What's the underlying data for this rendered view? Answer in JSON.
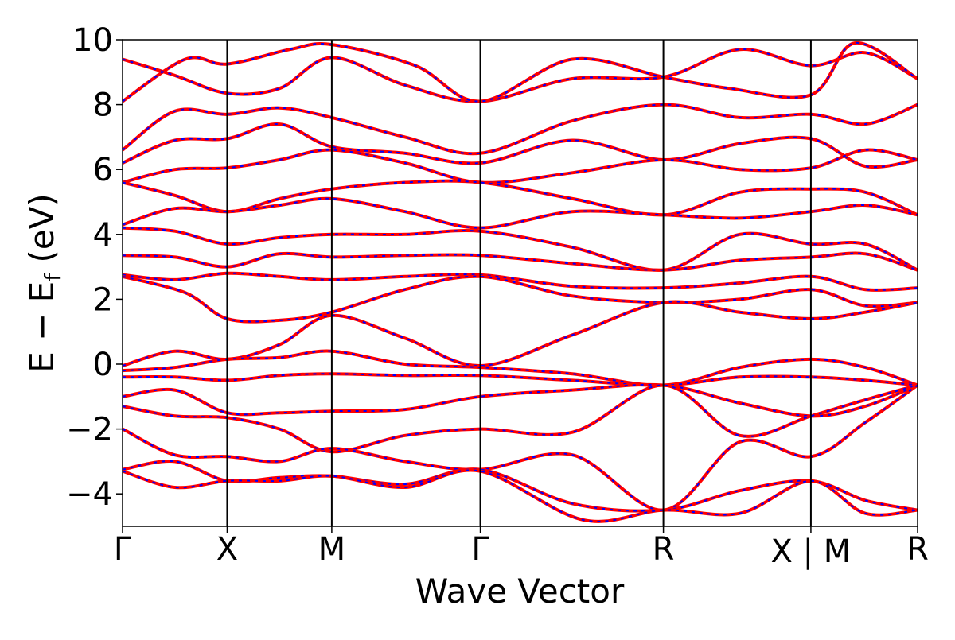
{
  "chart_data": {
    "type": "line",
    "title": "",
    "xlabel": "Wave Vector",
    "ylabel": "E − E",
    "ylabel_sub": "f",
    "ylabel_unit": " (eV)",
    "ylim": [
      -5,
      10
    ],
    "xlim": [
      0,
      7.6
    ],
    "y_ticks": [
      {
        "v": -4,
        "label": "−4"
      },
      {
        "v": -2,
        "label": "−2"
      },
      {
        "v": 0,
        "label": "0"
      },
      {
        "v": 2,
        "label": "2"
      },
      {
        "v": 4,
        "label": "4"
      },
      {
        "v": 6,
        "label": "6"
      },
      {
        "v": 8,
        "label": "8"
      },
      {
        "v": 10,
        "label": "10"
      }
    ],
    "kpoints": [
      {
        "x": 0.0,
        "label": "Γ"
      },
      {
        "x": 1.0,
        "label": "X"
      },
      {
        "x": 2.0,
        "label": "M"
      },
      {
        "x": 3.42,
        "label": "Γ"
      },
      {
        "x": 5.17,
        "label": "R"
      },
      {
        "x": 6.58,
        "label": "X | M"
      },
      {
        "x": 7.6,
        "label": "R"
      }
    ],
    "grid": false,
    "legend": "none",
    "colors": {
      "series_a": "#ff0000",
      "series_b": "#0000ff",
      "axes": "#000000"
    },
    "series": [
      {
        "style": "red-solid",
        "values": [
          {
            "x": 0.0,
            "y": 9.4
          },
          {
            "x": 0.5,
            "y": 8.9
          },
          {
            "x": 1.0,
            "y": 8.35
          },
          {
            "x": 1.5,
            "y": 8.5
          },
          {
            "x": 2.0,
            "y": 9.45
          },
          {
            "x": 2.7,
            "y": 8.6
          },
          {
            "x": 3.42,
            "y": 8.1
          },
          {
            "x": 4.3,
            "y": 8.8
          },
          {
            "x": 5.17,
            "y": 8.85
          },
          {
            "x": 5.9,
            "y": 9.7
          },
          {
            "x": 6.58,
            "y": 9.2
          },
          {
            "x": 7.1,
            "y": 9.6
          },
          {
            "x": 7.6,
            "y": 8.8
          }
        ]
      },
      {
        "style": "red-solid",
        "values": [
          {
            "x": 0.0,
            "y": 8.1
          },
          {
            "x": 0.6,
            "y": 9.4
          },
          {
            "x": 1.0,
            "y": 9.25
          },
          {
            "x": 1.6,
            "y": 9.7
          },
          {
            "x": 2.0,
            "y": 9.85
          },
          {
            "x": 2.8,
            "y": 9.2
          },
          {
            "x": 3.42,
            "y": 8.1
          },
          {
            "x": 4.3,
            "y": 9.4
          },
          {
            "x": 5.17,
            "y": 8.85
          },
          {
            "x": 5.8,
            "y": 8.5
          },
          {
            "x": 6.58,
            "y": 8.3
          },
          {
            "x": 7.0,
            "y": 9.9
          },
          {
            "x": 7.6,
            "y": 8.8
          }
        ]
      },
      {
        "style": "red-solid",
        "values": [
          {
            "x": 0.0,
            "y": 6.6
          },
          {
            "x": 0.5,
            "y": 7.8
          },
          {
            "x": 1.0,
            "y": 7.7
          },
          {
            "x": 1.5,
            "y": 7.9
          },
          {
            "x": 2.0,
            "y": 7.6
          },
          {
            "x": 2.7,
            "y": 7.0
          },
          {
            "x": 3.42,
            "y": 6.5
          },
          {
            "x": 4.3,
            "y": 7.5
          },
          {
            "x": 5.17,
            "y": 8.0
          },
          {
            "x": 5.9,
            "y": 7.6
          },
          {
            "x": 6.58,
            "y": 7.7
          },
          {
            "x": 7.1,
            "y": 7.4
          },
          {
            "x": 7.6,
            "y": 8.0
          }
        ]
      },
      {
        "style": "red-solid",
        "values": [
          {
            "x": 0.0,
            "y": 6.2
          },
          {
            "x": 0.5,
            "y": 6.9
          },
          {
            "x": 1.0,
            "y": 6.95
          },
          {
            "x": 1.5,
            "y": 7.4
          },
          {
            "x": 2.0,
            "y": 6.7
          },
          {
            "x": 2.7,
            "y": 6.5
          },
          {
            "x": 3.42,
            "y": 6.2
          },
          {
            "x": 4.3,
            "y": 6.9
          },
          {
            "x": 5.17,
            "y": 6.3
          },
          {
            "x": 5.9,
            "y": 6.8
          },
          {
            "x": 6.58,
            "y": 6.95
          },
          {
            "x": 7.1,
            "y": 6.1
          },
          {
            "x": 7.6,
            "y": 6.3
          }
        ]
      },
      {
        "style": "red-solid",
        "values": [
          {
            "x": 0.0,
            "y": 5.6
          },
          {
            "x": 0.5,
            "y": 6.0
          },
          {
            "x": 1.0,
            "y": 6.05
          },
          {
            "x": 1.5,
            "y": 6.3
          },
          {
            "x": 2.0,
            "y": 6.6
          },
          {
            "x": 2.7,
            "y": 6.2
          },
          {
            "x": 3.42,
            "y": 5.6
          },
          {
            "x": 4.3,
            "y": 5.9
          },
          {
            "x": 5.17,
            "y": 6.3
          },
          {
            "x": 5.9,
            "y": 6.0
          },
          {
            "x": 6.58,
            "y": 6.05
          },
          {
            "x": 7.1,
            "y": 6.6
          },
          {
            "x": 7.6,
            "y": 6.3
          }
        ]
      },
      {
        "style": "red-solid",
        "values": [
          {
            "x": 0.0,
            "y": 5.6
          },
          {
            "x": 0.5,
            "y": 5.2
          },
          {
            "x": 1.0,
            "y": 4.7
          },
          {
            "x": 1.5,
            "y": 5.1
          },
          {
            "x": 2.0,
            "y": 5.4
          },
          {
            "x": 2.7,
            "y": 5.6
          },
          {
            "x": 3.42,
            "y": 5.6
          },
          {
            "x": 4.3,
            "y": 5.1
          },
          {
            "x": 5.17,
            "y": 4.6
          },
          {
            "x": 5.9,
            "y": 5.3
          },
          {
            "x": 6.58,
            "y": 5.4
          },
          {
            "x": 7.1,
            "y": 5.3
          },
          {
            "x": 7.6,
            "y": 4.6
          }
        ]
      },
      {
        "style": "red-solid",
        "values": [
          {
            "x": 0.0,
            "y": 4.3
          },
          {
            "x": 0.5,
            "y": 4.8
          },
          {
            "x": 1.0,
            "y": 4.7
          },
          {
            "x": 1.5,
            "y": 4.9
          },
          {
            "x": 2.0,
            "y": 5.1
          },
          {
            "x": 2.7,
            "y": 4.7
          },
          {
            "x": 3.42,
            "y": 4.2
          },
          {
            "x": 4.3,
            "y": 4.7
          },
          {
            "x": 5.17,
            "y": 4.6
          },
          {
            "x": 5.9,
            "y": 4.5
          },
          {
            "x": 6.58,
            "y": 4.7
          },
          {
            "x": 7.1,
            "y": 4.9
          },
          {
            "x": 7.6,
            "y": 4.6
          }
        ]
      },
      {
        "style": "red-solid",
        "values": [
          {
            "x": 0.0,
            "y": 4.2
          },
          {
            "x": 0.5,
            "y": 4.1
          },
          {
            "x": 1.0,
            "y": 3.7
          },
          {
            "x": 1.5,
            "y": 3.9
          },
          {
            "x": 2.0,
            "y": 4.0
          },
          {
            "x": 2.7,
            "y": 4.0
          },
          {
            "x": 3.42,
            "y": 4.1
          },
          {
            "x": 4.3,
            "y": 3.6
          },
          {
            "x": 5.17,
            "y": 2.9
          },
          {
            "x": 5.9,
            "y": 4.0
          },
          {
            "x": 6.58,
            "y": 3.7
          },
          {
            "x": 7.1,
            "y": 3.7
          },
          {
            "x": 7.6,
            "y": 2.9
          }
        ]
      },
      {
        "style": "red-solid",
        "values": [
          {
            "x": 0.0,
            "y": 3.35
          },
          {
            "x": 0.5,
            "y": 3.3
          },
          {
            "x": 1.0,
            "y": 3.0
          },
          {
            "x": 1.5,
            "y": 3.4
          },
          {
            "x": 2.0,
            "y": 3.3
          },
          {
            "x": 2.7,
            "y": 3.35
          },
          {
            "x": 3.42,
            "y": 3.35
          },
          {
            "x": 4.3,
            "y": 3.1
          },
          {
            "x": 5.17,
            "y": 2.9
          },
          {
            "x": 5.9,
            "y": 3.2
          },
          {
            "x": 6.58,
            "y": 3.3
          },
          {
            "x": 7.1,
            "y": 3.4
          },
          {
            "x": 7.6,
            "y": 2.9
          }
        ]
      },
      {
        "style": "red-solid",
        "values": [
          {
            "x": 0.0,
            "y": 2.75
          },
          {
            "x": 0.5,
            "y": 2.6
          },
          {
            "x": 1.0,
            "y": 2.8
          },
          {
            "x": 1.5,
            "y": 2.7
          },
          {
            "x": 2.0,
            "y": 2.6
          },
          {
            "x": 2.7,
            "y": 2.7
          },
          {
            "x": 3.42,
            "y": 2.75
          },
          {
            "x": 4.3,
            "y": 2.4
          },
          {
            "x": 5.17,
            "y": 2.35
          },
          {
            "x": 5.9,
            "y": 2.5
          },
          {
            "x": 6.58,
            "y": 2.7
          },
          {
            "x": 7.1,
            "y": 2.3
          },
          {
            "x": 7.6,
            "y": 2.35
          }
        ]
      },
      {
        "style": "red-solid",
        "values": [
          {
            "x": 0.0,
            "y": 2.7
          },
          {
            "x": 0.6,
            "y": 2.2
          },
          {
            "x": 1.0,
            "y": 1.4
          },
          {
            "x": 1.5,
            "y": 1.35
          },
          {
            "x": 2.0,
            "y": 1.6
          },
          {
            "x": 2.7,
            "y": 2.3
          },
          {
            "x": 3.42,
            "y": 2.7
          },
          {
            "x": 4.3,
            "y": 2.1
          },
          {
            "x": 5.17,
            "y": 1.9
          },
          {
            "x": 5.9,
            "y": 2.0
          },
          {
            "x": 6.58,
            "y": 2.3
          },
          {
            "x": 7.1,
            "y": 1.8
          },
          {
            "x": 7.6,
            "y": 1.9
          }
        ]
      },
      {
        "style": "red-solid",
        "values": [
          {
            "x": 0.0,
            "y": -0.05
          },
          {
            "x": 0.5,
            "y": 0.4
          },
          {
            "x": 1.0,
            "y": 0.15
          },
          {
            "x": 1.5,
            "y": 0.6
          },
          {
            "x": 2.0,
            "y": 1.5
          },
          {
            "x": 2.7,
            "y": 0.8
          },
          {
            "x": 3.42,
            "y": -0.05
          },
          {
            "x": 4.3,
            "y": 0.9
          },
          {
            "x": 5.17,
            "y": 1.9
          },
          {
            "x": 5.9,
            "y": 1.6
          },
          {
            "x": 6.58,
            "y": 1.4
          },
          {
            "x": 7.1,
            "y": 1.6
          },
          {
            "x": 7.6,
            "y": 1.9
          }
        ]
      },
      {
        "style": "red-solid",
        "values": [
          {
            "x": 0.0,
            "y": -0.2
          },
          {
            "x": 0.5,
            "y": -0.1
          },
          {
            "x": 1.0,
            "y": 0.15
          },
          {
            "x": 1.5,
            "y": 0.2
          },
          {
            "x": 2.0,
            "y": 0.4
          },
          {
            "x": 2.7,
            "y": 0.0
          },
          {
            "x": 3.42,
            "y": -0.1
          },
          {
            "x": 4.3,
            "y": -0.3
          },
          {
            "x": 5.17,
            "y": -0.65
          },
          {
            "x": 5.9,
            "y": -0.1
          },
          {
            "x": 6.58,
            "y": 0.15
          },
          {
            "x": 7.1,
            "y": -0.1
          },
          {
            "x": 7.6,
            "y": -0.65
          }
        ]
      },
      {
        "style": "red-solid",
        "values": [
          {
            "x": 0.0,
            "y": -0.4
          },
          {
            "x": 0.5,
            "y": -0.4
          },
          {
            "x": 1.0,
            "y": -0.5
          },
          {
            "x": 1.5,
            "y": -0.35
          },
          {
            "x": 2.0,
            "y": -0.3
          },
          {
            "x": 2.7,
            "y": -0.35
          },
          {
            "x": 3.42,
            "y": -0.35
          },
          {
            "x": 4.3,
            "y": -0.5
          },
          {
            "x": 5.17,
            "y": -0.65
          },
          {
            "x": 5.9,
            "y": -0.4
          },
          {
            "x": 6.58,
            "y": -0.4
          },
          {
            "x": 7.1,
            "y": -0.5
          },
          {
            "x": 7.6,
            "y": -0.65
          }
        ]
      },
      {
        "style": "red-solid",
        "values": [
          {
            "x": 0.0,
            "y": -1.0
          },
          {
            "x": 0.5,
            "y": -0.8
          },
          {
            "x": 1.0,
            "y": -1.5
          },
          {
            "x": 1.5,
            "y": -1.5
          },
          {
            "x": 2.0,
            "y": -1.45
          },
          {
            "x": 2.7,
            "y": -1.4
          },
          {
            "x": 3.42,
            "y": -1.0
          },
          {
            "x": 4.3,
            "y": -0.8
          },
          {
            "x": 5.17,
            "y": -0.65
          },
          {
            "x": 5.9,
            "y": -1.2
          },
          {
            "x": 6.58,
            "y": -1.6
          },
          {
            "x": 7.1,
            "y": -1.3
          },
          {
            "x": 7.6,
            "y": -0.65
          }
        ]
      },
      {
        "style": "red-solid",
        "values": [
          {
            "x": 0.0,
            "y": -1.3
          },
          {
            "x": 0.5,
            "y": -1.6
          },
          {
            "x": 1.0,
            "y": -1.65
          },
          {
            "x": 1.5,
            "y": -2.0
          },
          {
            "x": 2.0,
            "y": -2.7
          },
          {
            "x": 2.7,
            "y": -2.2
          },
          {
            "x": 3.42,
            "y": -2.0
          },
          {
            "x": 4.3,
            "y": -2.1
          },
          {
            "x": 5.17,
            "y": -0.65
          },
          {
            "x": 5.9,
            "y": -2.2
          },
          {
            "x": 6.58,
            "y": -1.6
          },
          {
            "x": 7.1,
            "y": -1.1
          },
          {
            "x": 7.6,
            "y": -0.65
          }
        ]
      },
      {
        "style": "red-solid",
        "values": [
          {
            "x": 0.0,
            "y": -2.0
          },
          {
            "x": 0.5,
            "y": -2.8
          },
          {
            "x": 1.0,
            "y": -2.85
          },
          {
            "x": 1.5,
            "y": -3.0
          },
          {
            "x": 2.0,
            "y": -2.6
          },
          {
            "x": 2.7,
            "y": -3.0
          },
          {
            "x": 3.42,
            "y": -3.25
          },
          {
            "x": 4.3,
            "y": -2.8
          },
          {
            "x": 5.17,
            "y": -4.5
          },
          {
            "x": 5.9,
            "y": -2.4
          },
          {
            "x": 6.58,
            "y": -2.85
          },
          {
            "x": 7.1,
            "y": -1.8
          },
          {
            "x": 7.6,
            "y": -0.65
          }
        ]
      },
      {
        "style": "red-solid",
        "values": [
          {
            "x": 0.0,
            "y": -3.25
          },
          {
            "x": 0.5,
            "y": -3.0
          },
          {
            "x": 1.0,
            "y": -3.6
          },
          {
            "x": 1.5,
            "y": -3.5
          },
          {
            "x": 2.0,
            "y": -3.45
          },
          {
            "x": 2.7,
            "y": -3.7
          },
          {
            "x": 3.42,
            "y": -3.25
          },
          {
            "x": 4.3,
            "y": -4.3
          },
          {
            "x": 5.17,
            "y": -4.5
          },
          {
            "x": 5.9,
            "y": -3.9
          },
          {
            "x": 6.58,
            "y": -3.6
          },
          {
            "x": 7.1,
            "y": -4.2
          },
          {
            "x": 7.6,
            "y": -4.5
          }
        ]
      },
      {
        "style": "red-solid",
        "values": [
          {
            "x": 0.0,
            "y": -3.3
          },
          {
            "x": 0.5,
            "y": -3.8
          },
          {
            "x": 1.0,
            "y": -3.6
          },
          {
            "x": 1.5,
            "y": -3.6
          },
          {
            "x": 2.0,
            "y": -3.45
          },
          {
            "x": 2.7,
            "y": -3.8
          },
          {
            "x": 3.42,
            "y": -3.3
          },
          {
            "x": 4.4,
            "y": -4.8
          },
          {
            "x": 5.17,
            "y": -4.5
          },
          {
            "x": 5.9,
            "y": -4.6
          },
          {
            "x": 6.58,
            "y": -3.6
          },
          {
            "x": 7.1,
            "y": -4.6
          },
          {
            "x": 7.6,
            "y": -4.5
          }
        ]
      }
    ]
  }
}
